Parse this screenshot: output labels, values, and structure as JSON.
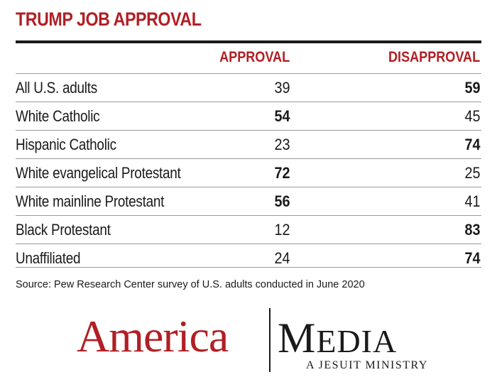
{
  "chart_data": {
    "type": "table",
    "title": "TRUMP JOB APPROVAL",
    "columns": [
      "APPROVAL",
      "DISAPPROVAL"
    ],
    "rows": [
      {
        "label": "All U.S. adults",
        "approval": "39",
        "disapproval": "59",
        "emphasis": "disapproval"
      },
      {
        "label": "White Catholic",
        "approval": "54",
        "disapproval": "45",
        "emphasis": "approval"
      },
      {
        "label": "Hispanic Catholic",
        "approval": "23",
        "disapproval": "74",
        "emphasis": "disapproval"
      },
      {
        "label": "White evangelical Protestant",
        "approval": "72",
        "disapproval": "25",
        "emphasis": "approval"
      },
      {
        "label": "White mainline Protestant",
        "approval": "56",
        "disapproval": "41",
        "emphasis": "approval"
      },
      {
        "label": "Black Protestant",
        "approval": "12",
        "disapproval": "83",
        "emphasis": "disapproval"
      },
      {
        "label": "Unaffiliated",
        "approval": "24",
        "disapproval": "74",
        "emphasis": "disapproval"
      }
    ],
    "source": "Source: Pew Research Center survey of U.S. adults conducted in June 2020"
  },
  "logo": {
    "left_word": "America",
    "right_initial": "M",
    "right_rest": "EDIA",
    "tagline": "A JESUIT MINISTRY"
  },
  "colors": {
    "accent": "#b11f24",
    "text": "#1a1a1a",
    "rule": "#9a9a9a"
  }
}
